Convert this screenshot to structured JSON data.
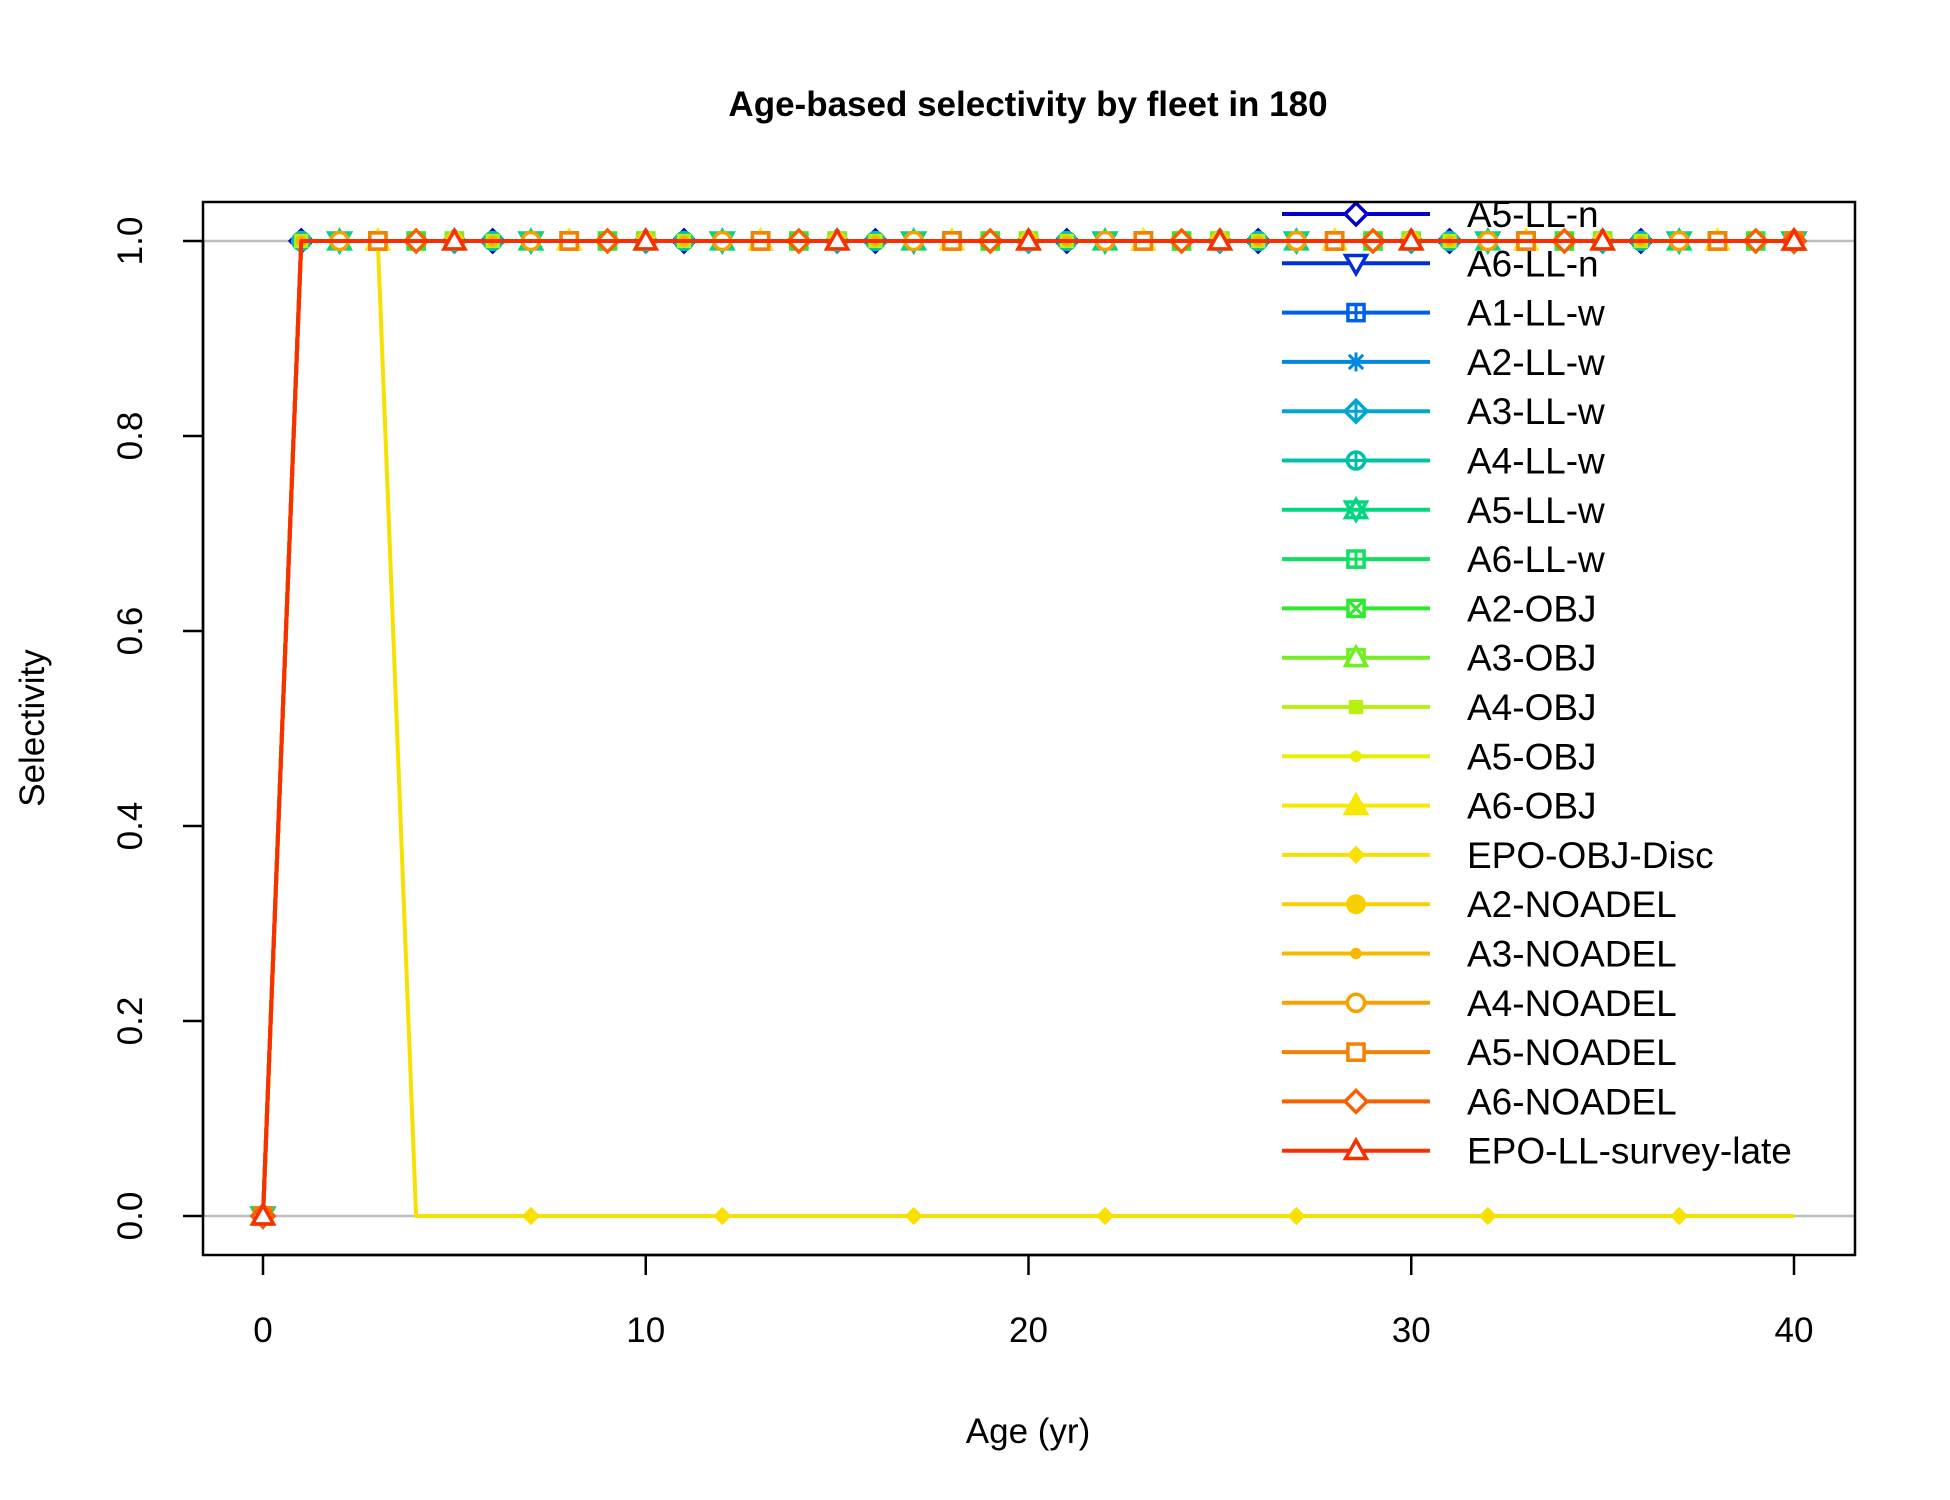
{
  "chart_data": {
    "type": "line",
    "title": "Age-based selectivity by fleet in 180",
    "xlabel": "Age (yr)",
    "ylabel": "Selectivity",
    "xlim": [
      0,
      40
    ],
    "ylim": [
      0,
      1
    ],
    "x_ticks": [
      0,
      10,
      20,
      30,
      40
    ],
    "y_ticks": [
      0.0,
      0.2,
      0.4,
      0.6,
      0.8,
      1.0
    ],
    "x_tick_labels": [
      "0",
      "10",
      "20",
      "30",
      "40"
    ],
    "y_tick_labels": [
      "0.0",
      "0.2",
      "0.4",
      "0.6",
      "0.8",
      "1.0"
    ],
    "reference_lines_y": [
      0,
      1
    ],
    "legend_position": "top-right",
    "grid": false,
    "series": [
      {
        "name": "A5-LL-n",
        "color": "#0000C8",
        "marker": "diamond-open",
        "profile": "flat"
      },
      {
        "name": "A6-LL-n",
        "color": "#0030D8",
        "marker": "triangle-down-open",
        "profile": "flat"
      },
      {
        "name": "A1-LL-w",
        "color": "#0060E8",
        "marker": "square-plus",
        "profile": "flat"
      },
      {
        "name": "A2-LL-w",
        "color": "#0088E0",
        "marker": "asterisk",
        "profile": "flat"
      },
      {
        "name": "A3-LL-w",
        "color": "#00A8D0",
        "marker": "diamond-plus",
        "profile": "flat"
      },
      {
        "name": "A4-LL-w",
        "color": "#00C0A8",
        "marker": "circle-plus",
        "profile": "flat"
      },
      {
        "name": "A5-LL-w",
        "color": "#00D880",
        "marker": "star-of-david",
        "profile": "flat"
      },
      {
        "name": "A6-LL-w",
        "color": "#10E060",
        "marker": "square-grid",
        "profile": "flat"
      },
      {
        "name": "A2-OBJ",
        "color": "#30E830",
        "marker": "square-x",
        "profile": "flat"
      },
      {
        "name": "A3-OBJ",
        "color": "#70F020",
        "marker": "square-triangle",
        "profile": "flat"
      },
      {
        "name": "A4-OBJ",
        "color": "#B8F010",
        "marker": "square-filled",
        "profile": "flat"
      },
      {
        "name": "A5-OBJ",
        "color": "#E8F000",
        "marker": "circle-small",
        "profile": "flat"
      },
      {
        "name": "A6-OBJ",
        "color": "#F8E800",
        "marker": "triangle-filled",
        "profile": "flat"
      },
      {
        "name": "EPO-OBJ-Disc",
        "color": "#F8E000",
        "marker": "diamond-small",
        "profile": "disc",
        "x": [
          0,
          1,
          3,
          4,
          40
        ],
        "y": [
          0,
          1,
          1,
          0,
          0
        ],
        "marker_x": [
          2,
          7,
          12,
          17,
          22,
          27,
          32,
          37
        ]
      },
      {
        "name": "A2-NOADEL",
        "color": "#F8D000",
        "marker": "circle-filled",
        "profile": "flat"
      },
      {
        "name": "A3-NOADEL",
        "color": "#F8B800",
        "marker": "circle-small",
        "profile": "flat"
      },
      {
        "name": "A4-NOADEL",
        "color": "#F8A000",
        "marker": "circle-open",
        "profile": "flat"
      },
      {
        "name": "A5-NOADEL",
        "color": "#F88000",
        "marker": "square-open",
        "profile": "flat"
      },
      {
        "name": "A6-NOADEL",
        "color": "#F86000",
        "marker": "diamond-open",
        "profile": "flat"
      },
      {
        "name": "EPO-LL-survey-late",
        "color": "#F83000",
        "marker": "triangle-open",
        "profile": "flat"
      }
    ]
  }
}
